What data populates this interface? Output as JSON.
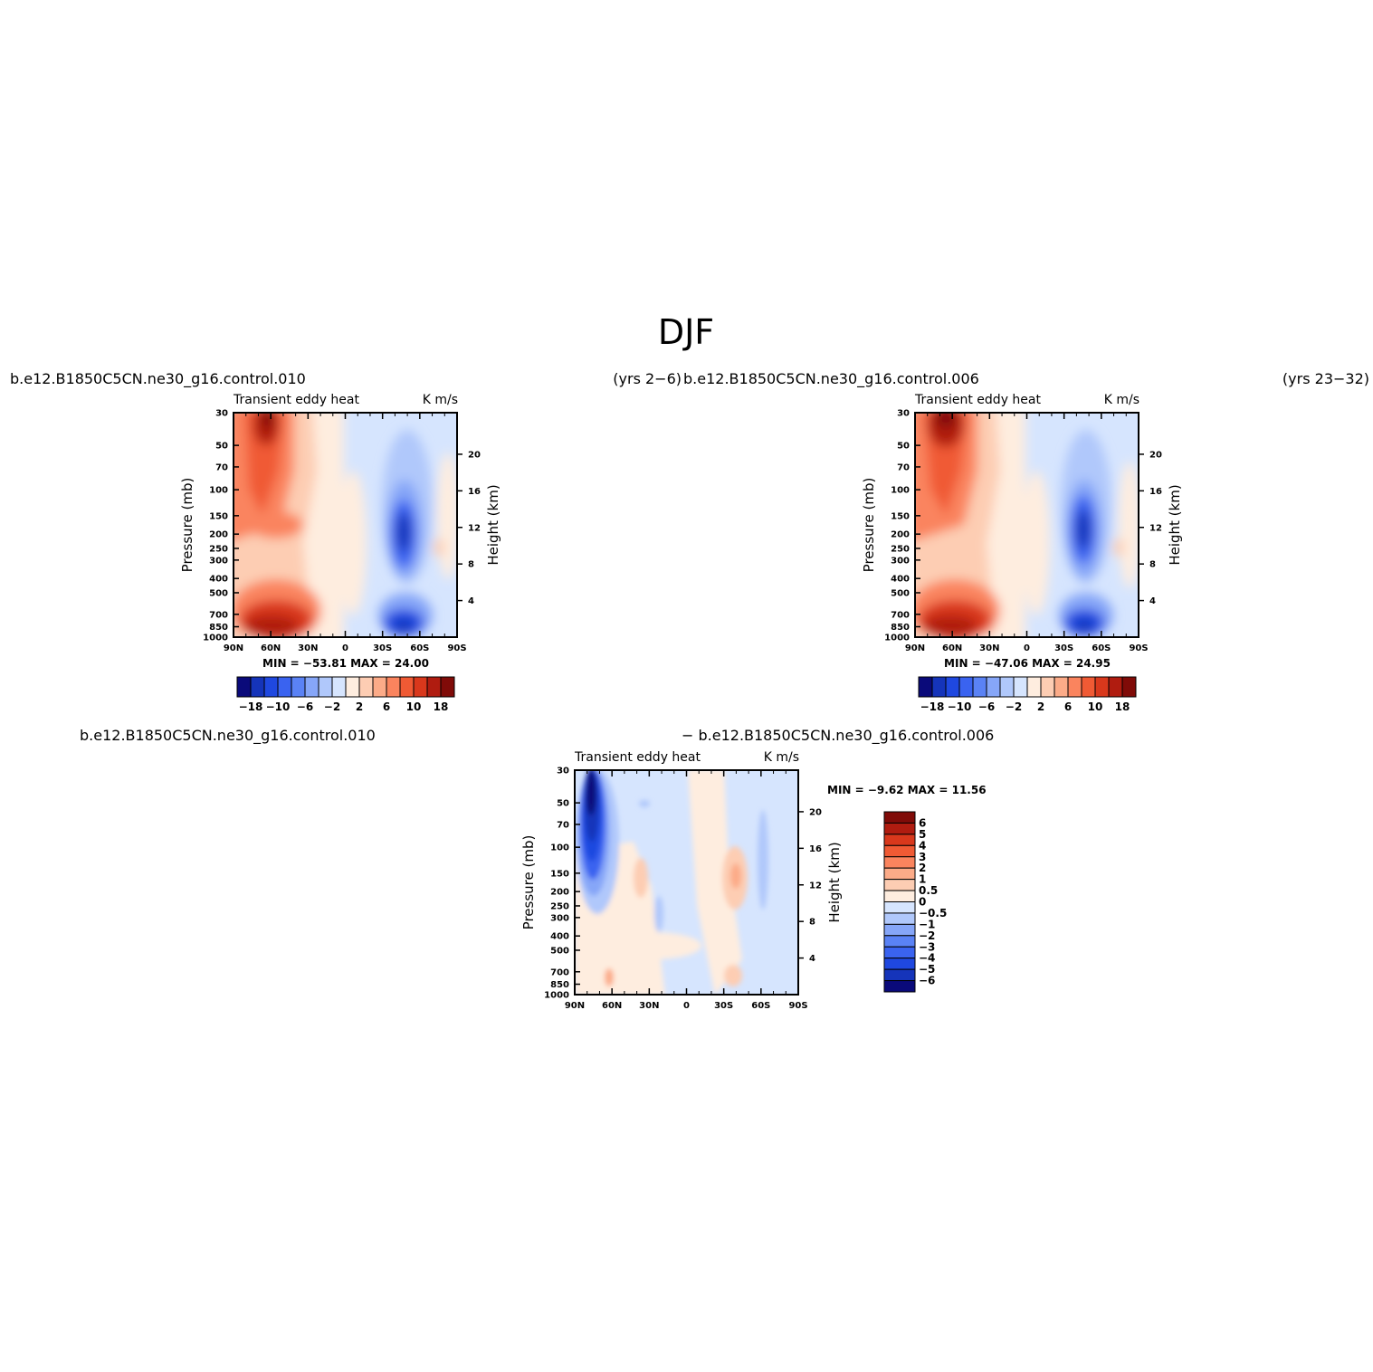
{
  "figure": {
    "title": "DJF",
    "left_run": "b.e12.B1850C5CN.ne30_g16.control.010",
    "left_years": "(yrs 2−6)",
    "right_run": "b.e12.B1850C5CN.ne30_g16.control.006",
    "right_years": "(yrs 23−32)",
    "diff_left_run": "b.e12.B1850C5CN.ne30_g16.control.010",
    "diff_right_run": "− b.e12.B1850C5CN.ne30_g16.control.006"
  },
  "chart_data": [
    {
      "type": "heatmap",
      "panel": "control.010",
      "title_left": "Transient eddy heat",
      "title_right": "K m/s",
      "ylabel": "Pressure (mb)",
      "ylabel_right": "Height (km)",
      "x_ticks": [
        "90N",
        "60N",
        "30N",
        "0",
        "30S",
        "60S",
        "90S"
      ],
      "y_ticks": [
        30,
        50,
        70,
        100,
        150,
        200,
        250,
        300,
        400,
        500,
        700,
        850,
        1000
      ],
      "y_log": true,
      "y_right_ticks": [
        20,
        16,
        12,
        8,
        4
      ],
      "stats": "MIN = −53.81   MAX =   24.00",
      "levels": [
        -18,
        -14,
        -10,
        -8,
        -6,
        -4,
        -2,
        0,
        2,
        4,
        6,
        8,
        10,
        14,
        18
      ],
      "colorbar_labels": [
        "−18",
        "−10",
        "−6",
        "−2",
        "2",
        "6",
        "10",
        "18"
      ],
      "colors": [
        "#0a0a7a",
        "#1534ba",
        "#1f48e0",
        "#3a63f0",
        "#5a82f5",
        "#86a6f8",
        "#b0c8fb",
        "#d6e5fe",
        "#feeddf",
        "#fdcdb3",
        "#fcab88",
        "#fa845e",
        "#f05a34",
        "#d9381c",
        "#b01c10",
        "#800b08"
      ],
      "features": [
        {
          "lat": 65,
          "p": 35,
          "value": 24
        },
        {
          "lat": 55,
          "p": 900,
          "value": 22
        },
        {
          "lat": 58,
          "p": 200,
          "value": 12
        },
        {
          "lat": -48,
          "p": 200,
          "value": -53.81
        },
        {
          "lat": -48,
          "p": 850,
          "value": -20
        }
      ]
    },
    {
      "type": "heatmap",
      "panel": "control.006",
      "title_left": "Transient eddy heat",
      "title_right": "K m/s",
      "ylabel": "Pressure (mb)",
      "ylabel_right": "Height (km)",
      "x_ticks": [
        "90N",
        "60N",
        "30N",
        "0",
        "30S",
        "60S",
        "90S"
      ],
      "y_ticks": [
        30,
        50,
        70,
        100,
        150,
        200,
        250,
        300,
        400,
        500,
        700,
        850,
        1000
      ],
      "y_log": true,
      "y_right_ticks": [
        20,
        16,
        12,
        8,
        4
      ],
      "stats": "MIN = −47.06   MAX =   24.95",
      "levels": [
        -18,
        -14,
        -10,
        -8,
        -6,
        -4,
        -2,
        0,
        2,
        4,
        6,
        8,
        10,
        14,
        18
      ],
      "colorbar_labels": [
        "−18",
        "−10",
        "−6",
        "−2",
        "2",
        "6",
        "10",
        "18"
      ],
      "colors": [
        "#0a0a7a",
        "#1534ba",
        "#1f48e0",
        "#3a63f0",
        "#5a82f5",
        "#86a6f8",
        "#b0c8fb",
        "#d6e5fe",
        "#feeddf",
        "#fdcdb3",
        "#fcab88",
        "#fa845e",
        "#f05a34",
        "#d9381c",
        "#b01c10",
        "#800b08"
      ],
      "features": [
        {
          "lat": 70,
          "p": 35,
          "value": 24.95
        },
        {
          "lat": 55,
          "p": 900,
          "value": 22
        },
        {
          "lat": -48,
          "p": 200,
          "value": -47.06
        },
        {
          "lat": -48,
          "p": 850,
          "value": -20
        }
      ]
    },
    {
      "type": "heatmap",
      "panel": "difference",
      "title_left": "Transient eddy heat",
      "title_right": "K m/s",
      "ylabel": "Pressure (mb)",
      "ylabel_right": "Height (km)",
      "x_ticks": [
        "90N",
        "60N",
        "30N",
        "0",
        "30S",
        "60S",
        "90S"
      ],
      "y_ticks": [
        30,
        50,
        70,
        100,
        150,
        200,
        250,
        300,
        400,
        500,
        700,
        850,
        1000
      ],
      "y_log": true,
      "y_right_ticks": [
        20,
        16,
        12,
        8,
        4
      ],
      "stats": "MIN =   −9.62   MAX =   11.56",
      "levels": [
        -6,
        -5,
        -4,
        -3,
        -2,
        -1,
        -0.5,
        0,
        0.5,
        1,
        2,
        3,
        4,
        5,
        6
      ],
      "colorbar_labels": [
        "6",
        "5",
        "4",
        "3",
        "2",
        "1",
        "0.5",
        "0",
        "−0.5",
        "−1",
        "−2",
        "−3",
        "−4",
        "−5",
        "−6"
      ],
      "colors": [
        "#0a0a7a",
        "#1534ba",
        "#1f48e0",
        "#3a63f0",
        "#5a82f5",
        "#86a6f8",
        "#b0c8fb",
        "#d6e5fe",
        "#feeddf",
        "#fdcdb3",
        "#fcab88",
        "#fa845e",
        "#f05a34",
        "#d9381c",
        "#b01c10",
        "#800b08"
      ],
      "features": [
        {
          "lat": 70,
          "p": 60,
          "value": -9.62
        },
        {
          "lat": 40,
          "p": 170,
          "value": 2
        },
        {
          "lat": -40,
          "p": 160,
          "value": 3
        },
        {
          "lat": 55,
          "p": 900,
          "value": 2
        }
      ]
    }
  ]
}
